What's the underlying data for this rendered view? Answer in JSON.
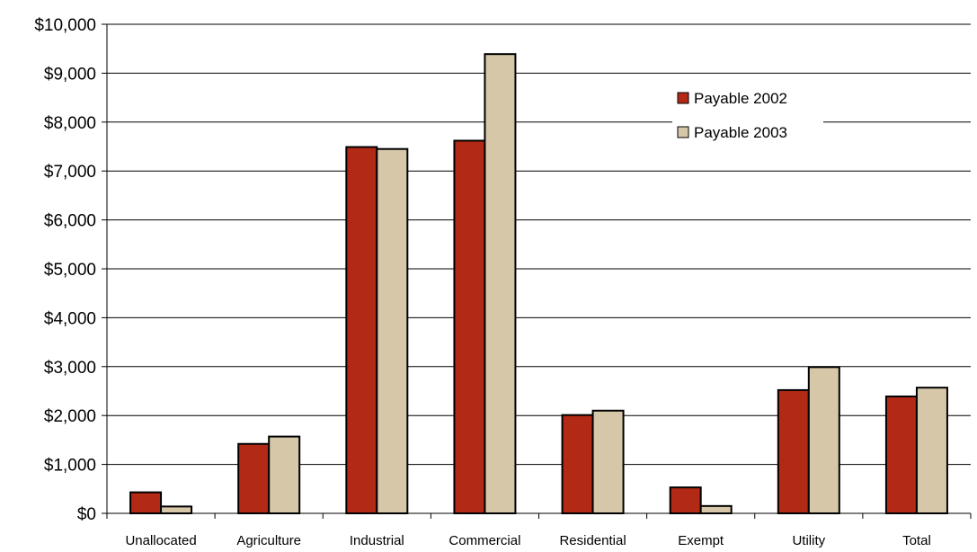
{
  "chart_data": {
    "type": "bar",
    "categories": [
      "Unallocated",
      "Agriculture",
      "Industrial",
      "Commercial",
      "Residential",
      "Exempt",
      "Utility",
      "Total"
    ],
    "series": [
      {
        "name": "Payable 2002",
        "color": "#b22a15",
        "values": [
          430,
          1420,
          7490,
          7620,
          2010,
          530,
          2520,
          2390
        ]
      },
      {
        "name": "Payable 2003",
        "color": "#d6c7a8",
        "values": [
          140,
          1570,
          7450,
          9390,
          2100,
          150,
          2990,
          2570
        ]
      }
    ],
    "ylim": [
      0,
      10000
    ],
    "yticks": [
      0,
      1000,
      2000,
      3000,
      4000,
      5000,
      6000,
      7000,
      8000,
      9000,
      10000
    ],
    "ytick_labels": [
      "$0",
      "$1,000",
      "$2,000",
      "$3,000",
      "$4,000",
      "$5,000",
      "$6,000",
      "$7,000",
      "$8,000",
      "$9,000",
      "$10,000"
    ],
    "grid": true,
    "legend": "upper-right-inside",
    "title": "",
    "xlabel": "",
    "ylabel": ""
  }
}
